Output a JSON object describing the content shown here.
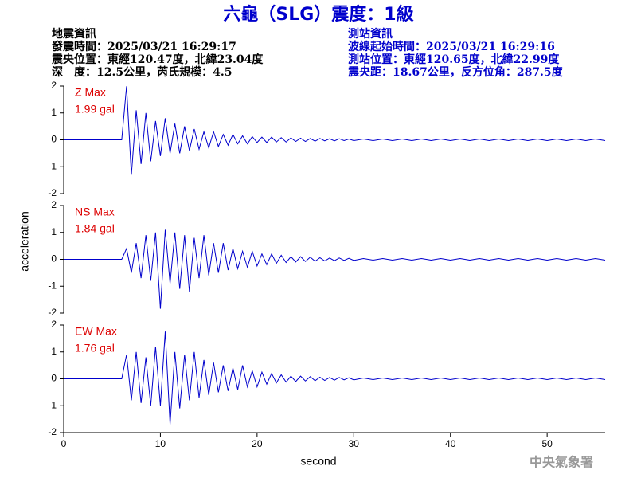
{
  "header": {
    "title": "六龜（SLG）震度：1級",
    "left": [
      "地震資訊",
      "發震時間：2025/03/21 16:29:17",
      "震央位置：東經120.47度，北緯23.04度",
      "深　度：12.5公里，芮氏規模：4.5"
    ],
    "right": [
      "測站資訊",
      "波線起始時間：2025/03/21 16:29:16",
      "測站位置：東經120.65度，北緯22.99度",
      "震央距：18.67公里，反方位角：287.5度"
    ]
  },
  "footer": "中央氣象署",
  "chart_data": [
    {
      "type": "line",
      "annotation": [
        "Z Max",
        "1.99 gal"
      ],
      "color": "#0000cc",
      "x": [
        0,
        2,
        4,
        6,
        6.5,
        7,
        7.5,
        8,
        8.5,
        9,
        9.5,
        10,
        10.5,
        11,
        11.5,
        12,
        12.5,
        13,
        13.5,
        14,
        14.5,
        15,
        15.5,
        16,
        16.5,
        17,
        17.5,
        18,
        18.5,
        19,
        19.5,
        20,
        20.5,
        21,
        21.5,
        22,
        22.5,
        23,
        23.5,
        24,
        24.5,
        25,
        25.5,
        26,
        26.5,
        27,
        27.5,
        28,
        28.5,
        29,
        29.5,
        30,
        31,
        32,
        33,
        34,
        35,
        36,
        37,
        38,
        39,
        40,
        41,
        42,
        43,
        44,
        45,
        46,
        47,
        48,
        49,
        50,
        51,
        52,
        53,
        54,
        55,
        56
      ],
      "values": [
        0,
        0,
        0,
        0,
        1.99,
        -1.3,
        1.1,
        -0.9,
        1.0,
        -0.8,
        0.7,
        -0.6,
        0.8,
        -0.5,
        0.6,
        -0.5,
        0.5,
        -0.4,
        0.4,
        -0.35,
        0.3,
        -0.3,
        0.3,
        -0.25,
        0.2,
        -0.2,
        0.2,
        -0.15,
        0.15,
        -0.15,
        0.12,
        -0.1,
        0.1,
        -0.1,
        0.1,
        -0.08,
        0.08,
        -0.08,
        0.07,
        -0.06,
        0.06,
        -0.06,
        0.05,
        -0.05,
        0.05,
        -0.04,
        0.04,
        -0.04,
        0.04,
        -0.03,
        0.03,
        -0.03,
        0.03,
        -0.03,
        0.03,
        -0.03,
        0.03,
        -0.03,
        0.03,
        -0.03,
        0.03,
        -0.03,
        0.03,
        -0.03,
        0.03,
        -0.03,
        0.03,
        -0.03,
        0.03,
        -0.03,
        0.03,
        -0.03,
        0.03,
        -0.03,
        0.03,
        -0.03,
        0.03,
        -0.03
      ],
      "xlim": [
        0,
        56
      ],
      "ylim": [
        -2,
        2
      ],
      "yticks": [
        -2,
        -1,
        0,
        1,
        2
      ]
    },
    {
      "type": "line",
      "annotation": [
        "NS Max",
        "1.84 gal"
      ],
      "color": "#0000cc",
      "ylabel": "acceleration",
      "x": [
        0,
        2,
        4,
        6,
        6.5,
        7,
        7.5,
        8,
        8.5,
        9,
        9.5,
        10,
        10.5,
        11,
        11.5,
        12,
        12.5,
        13,
        13.5,
        14,
        14.5,
        15,
        15.5,
        16,
        16.5,
        17,
        17.5,
        18,
        18.5,
        19,
        19.5,
        20,
        20.5,
        21,
        21.5,
        22,
        22.5,
        23,
        23.5,
        24,
        24.5,
        25,
        25.5,
        26,
        26.5,
        27,
        27.5,
        28,
        28.5,
        29,
        29.5,
        30,
        31,
        32,
        33,
        34,
        35,
        36,
        37,
        38,
        39,
        40,
        41,
        42,
        43,
        44,
        45,
        46,
        47,
        48,
        49,
        50,
        51,
        52,
        53,
        54,
        55,
        56
      ],
      "values": [
        0,
        0,
        0,
        0,
        0.4,
        -0.5,
        0.6,
        -0.7,
        0.9,
        -0.8,
        1.0,
        -1.84,
        1.1,
        -0.9,
        1.0,
        -1.1,
        0.9,
        -1.2,
        0.8,
        -0.7,
        0.9,
        -0.6,
        0.6,
        -0.5,
        0.6,
        -0.4,
        0.4,
        -0.35,
        0.3,
        -0.3,
        0.3,
        -0.25,
        0.2,
        -0.2,
        0.2,
        -0.15,
        0.15,
        -0.12,
        0.1,
        -0.1,
        0.1,
        -0.08,
        0.08,
        -0.07,
        0.06,
        -0.06,
        0.05,
        -0.05,
        0.05,
        -0.04,
        0.04,
        -0.04,
        0.03,
        -0.03,
        0.03,
        -0.03,
        0.03,
        -0.03,
        0.03,
        -0.03,
        0.03,
        -0.03,
        0.03,
        -0.03,
        0.03,
        -0.03,
        0.03,
        -0.03,
        0.03,
        -0.03,
        0.03,
        -0.03,
        0.03,
        -0.03,
        0.03,
        -0.03,
        0.03,
        -0.03
      ],
      "xlim": [
        0,
        56
      ],
      "ylim": [
        -2,
        2
      ],
      "yticks": [
        -2,
        -1,
        0,
        1,
        2
      ]
    },
    {
      "type": "line",
      "annotation": [
        "EW Max",
        "1.76 gal"
      ],
      "color": "#0000cc",
      "xlabel": "second",
      "x": [
        0,
        2,
        4,
        6,
        6.5,
        7,
        7.5,
        8,
        8.5,
        9,
        9.5,
        10,
        10.5,
        11,
        11.5,
        12,
        12.5,
        13,
        13.5,
        14,
        14.5,
        15,
        15.5,
        16,
        16.5,
        17,
        17.5,
        18,
        18.5,
        19,
        19.5,
        20,
        20.5,
        21,
        21.5,
        22,
        22.5,
        23,
        23.5,
        24,
        24.5,
        25,
        25.5,
        26,
        26.5,
        27,
        27.5,
        28,
        28.5,
        29,
        29.5,
        30,
        31,
        32,
        33,
        34,
        35,
        36,
        37,
        38,
        39,
        40,
        41,
        42,
        43,
        44,
        45,
        46,
        47,
        48,
        49,
        50,
        51,
        52,
        53,
        54,
        55,
        56
      ],
      "values": [
        0,
        0,
        0,
        0,
        0.9,
        -0.8,
        1.0,
        -0.9,
        0.8,
        -1.0,
        1.2,
        -1.0,
        1.76,
        -1.7,
        1.0,
        -1.1,
        0.9,
        -0.8,
        1.0,
        -0.7,
        0.7,
        -0.6,
        0.6,
        -0.5,
        0.5,
        -0.45,
        0.4,
        -0.4,
        0.5,
        -0.3,
        0.3,
        -0.3,
        0.25,
        -0.2,
        0.2,
        -0.15,
        0.15,
        -0.12,
        0.1,
        -0.1,
        0.1,
        -0.08,
        0.08,
        -0.07,
        0.06,
        -0.06,
        0.05,
        -0.05,
        0.05,
        -0.04,
        0.04,
        -0.04,
        0.03,
        -0.03,
        0.03,
        -0.03,
        0.03,
        -0.03,
        0.03,
        -0.03,
        0.03,
        -0.03,
        0.03,
        -0.03,
        0.03,
        -0.03,
        0.03,
        -0.03,
        0.03,
        -0.03,
        0.03,
        -0.03,
        0.03,
        -0.03,
        0.03,
        -0.03,
        0.03,
        -0.03
      ],
      "xlim": [
        0,
        56
      ],
      "ylim": [
        -2,
        2
      ],
      "yticks": [
        -2,
        -1,
        0,
        1,
        2
      ],
      "xticks": [
        0,
        10,
        20,
        30,
        40,
        50
      ]
    }
  ]
}
